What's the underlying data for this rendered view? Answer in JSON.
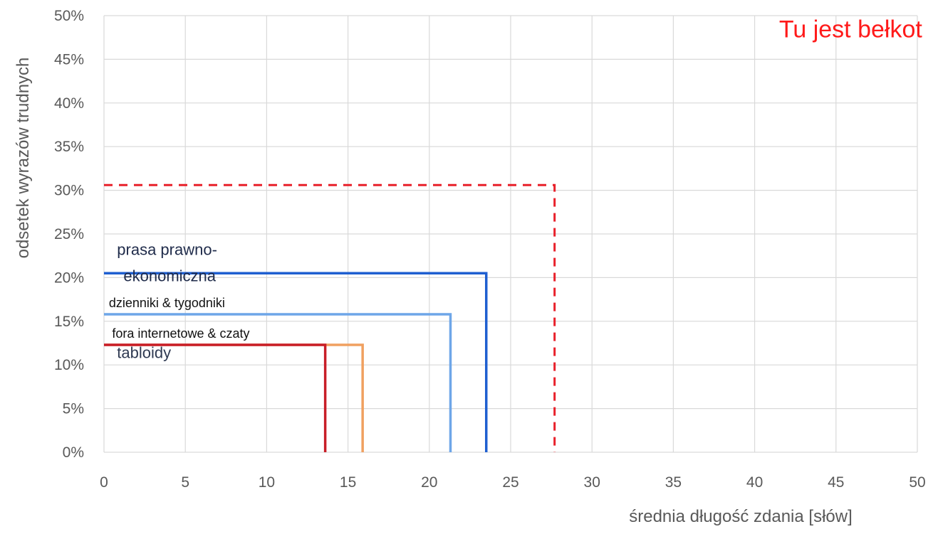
{
  "chart_data": {
    "type": "line",
    "title": "",
    "xlabel": "średnia długość zdania [słów]",
    "ylabel": "odsetek wyrazów trudnych",
    "xlim": [
      0,
      50
    ],
    "ylim": [
      0,
      0.5
    ],
    "x_ticks": [
      "0",
      "5",
      "10",
      "15",
      "20",
      "25",
      "30",
      "35",
      "40",
      "45",
      "50"
    ],
    "y_ticks": [
      "0%",
      "5%",
      "10%",
      "15%",
      "20%",
      "25%",
      "30%",
      "35%",
      "40%",
      "45%",
      "50%"
    ],
    "grid": true,
    "legend": "none",
    "series": [
      {
        "name": "",
        "x": 27.7,
        "y": 0.306,
        "color": "#e8202a",
        "dashed": true,
        "width": 3
      },
      {
        "name": "",
        "x": 23.5,
        "y": 0.205,
        "color": "#1f5fd0",
        "dashed": false,
        "width": 3.5
      },
      {
        "name": "",
        "x": 21.3,
        "y": 0.158,
        "color": "#6ea6e8",
        "dashed": false,
        "width": 3.5
      },
      {
        "name": "",
        "x": 15.9,
        "y": 0.123,
        "color": "#f0a060",
        "dashed": false,
        "width": 3.5
      },
      {
        "name": "",
        "x": 13.6,
        "y": 0.123,
        "color": "#c81e28",
        "dashed": false,
        "width": 3.5
      }
    ],
    "annotations": [
      {
        "text": "prasa prawno-",
        "x": 0.8,
        "y": 0.226,
        "size": 22,
        "color": "#1f2b4a"
      },
      {
        "text": "ekonomiczna",
        "x": 1.2,
        "y": 0.196,
        "size": 22,
        "color": "#1f2b4a"
      },
      {
        "text": "dzienniki & tygodniki",
        "x": 0.3,
        "y": 0.166,
        "size": 18,
        "color": "#111111"
      },
      {
        "text": "fora internetowe & czaty",
        "x": 0.5,
        "y": 0.131,
        "size": 18,
        "color": "#111111"
      },
      {
        "text": "tabloidy",
        "x": 0.8,
        "y": 0.108,
        "size": 22,
        "color": "#2f3a52"
      },
      {
        "text": "Tu jest bełkot",
        "x": 41.5,
        "y": 0.475,
        "size": 34,
        "color": "#ff1a1a"
      }
    ]
  }
}
